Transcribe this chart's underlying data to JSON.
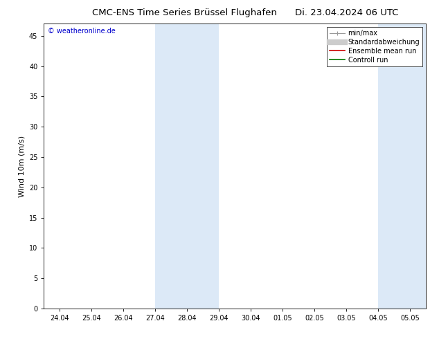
{
  "title": "CMC-ENS Time Series Brüssel Flughafen",
  "title_right": "Di. 23.04.2024 06 UTC",
  "ylabel": "Wind 10m (m/s)",
  "watermark": "© weatheronline.de",
  "ylim": [
    0,
    47
  ],
  "yticks": [
    0,
    5,
    10,
    15,
    20,
    25,
    30,
    35,
    40,
    45
  ],
  "xtick_labels": [
    "24.04",
    "25.04",
    "26.04",
    "27.04",
    "28.04",
    "29.04",
    "30.04",
    "01.05",
    "02.05",
    "03.05",
    "04.05",
    "05.05"
  ],
  "xtick_positions": [
    0,
    1,
    2,
    3,
    4,
    5,
    6,
    7,
    8,
    9,
    10,
    11
  ],
  "xmin": -0.5,
  "xmax": 11.5,
  "shaded_regions": [
    {
      "xstart": 3,
      "xend": 5,
      "color": "#dce9f7"
    },
    {
      "xstart": 10,
      "xend": 11.5,
      "color": "#dce9f7"
    }
  ],
  "legend_entries": [
    {
      "label": "min/max",
      "color": "#999999",
      "type": "minmax"
    },
    {
      "label": "Standardabweichung",
      "color": "#cccccc",
      "type": "band"
    },
    {
      "label": "Ensemble mean run",
      "color": "#cc0000",
      "type": "line"
    },
    {
      "label": "Controll run",
      "color": "#007700",
      "type": "line"
    }
  ],
  "bg_color": "#ffffff",
  "watermark_color": "#0000cc",
  "title_fontsize": 9.5,
  "ylabel_fontsize": 8,
  "tick_fontsize": 7,
  "legend_fontsize": 7,
  "watermark_fontsize": 7
}
